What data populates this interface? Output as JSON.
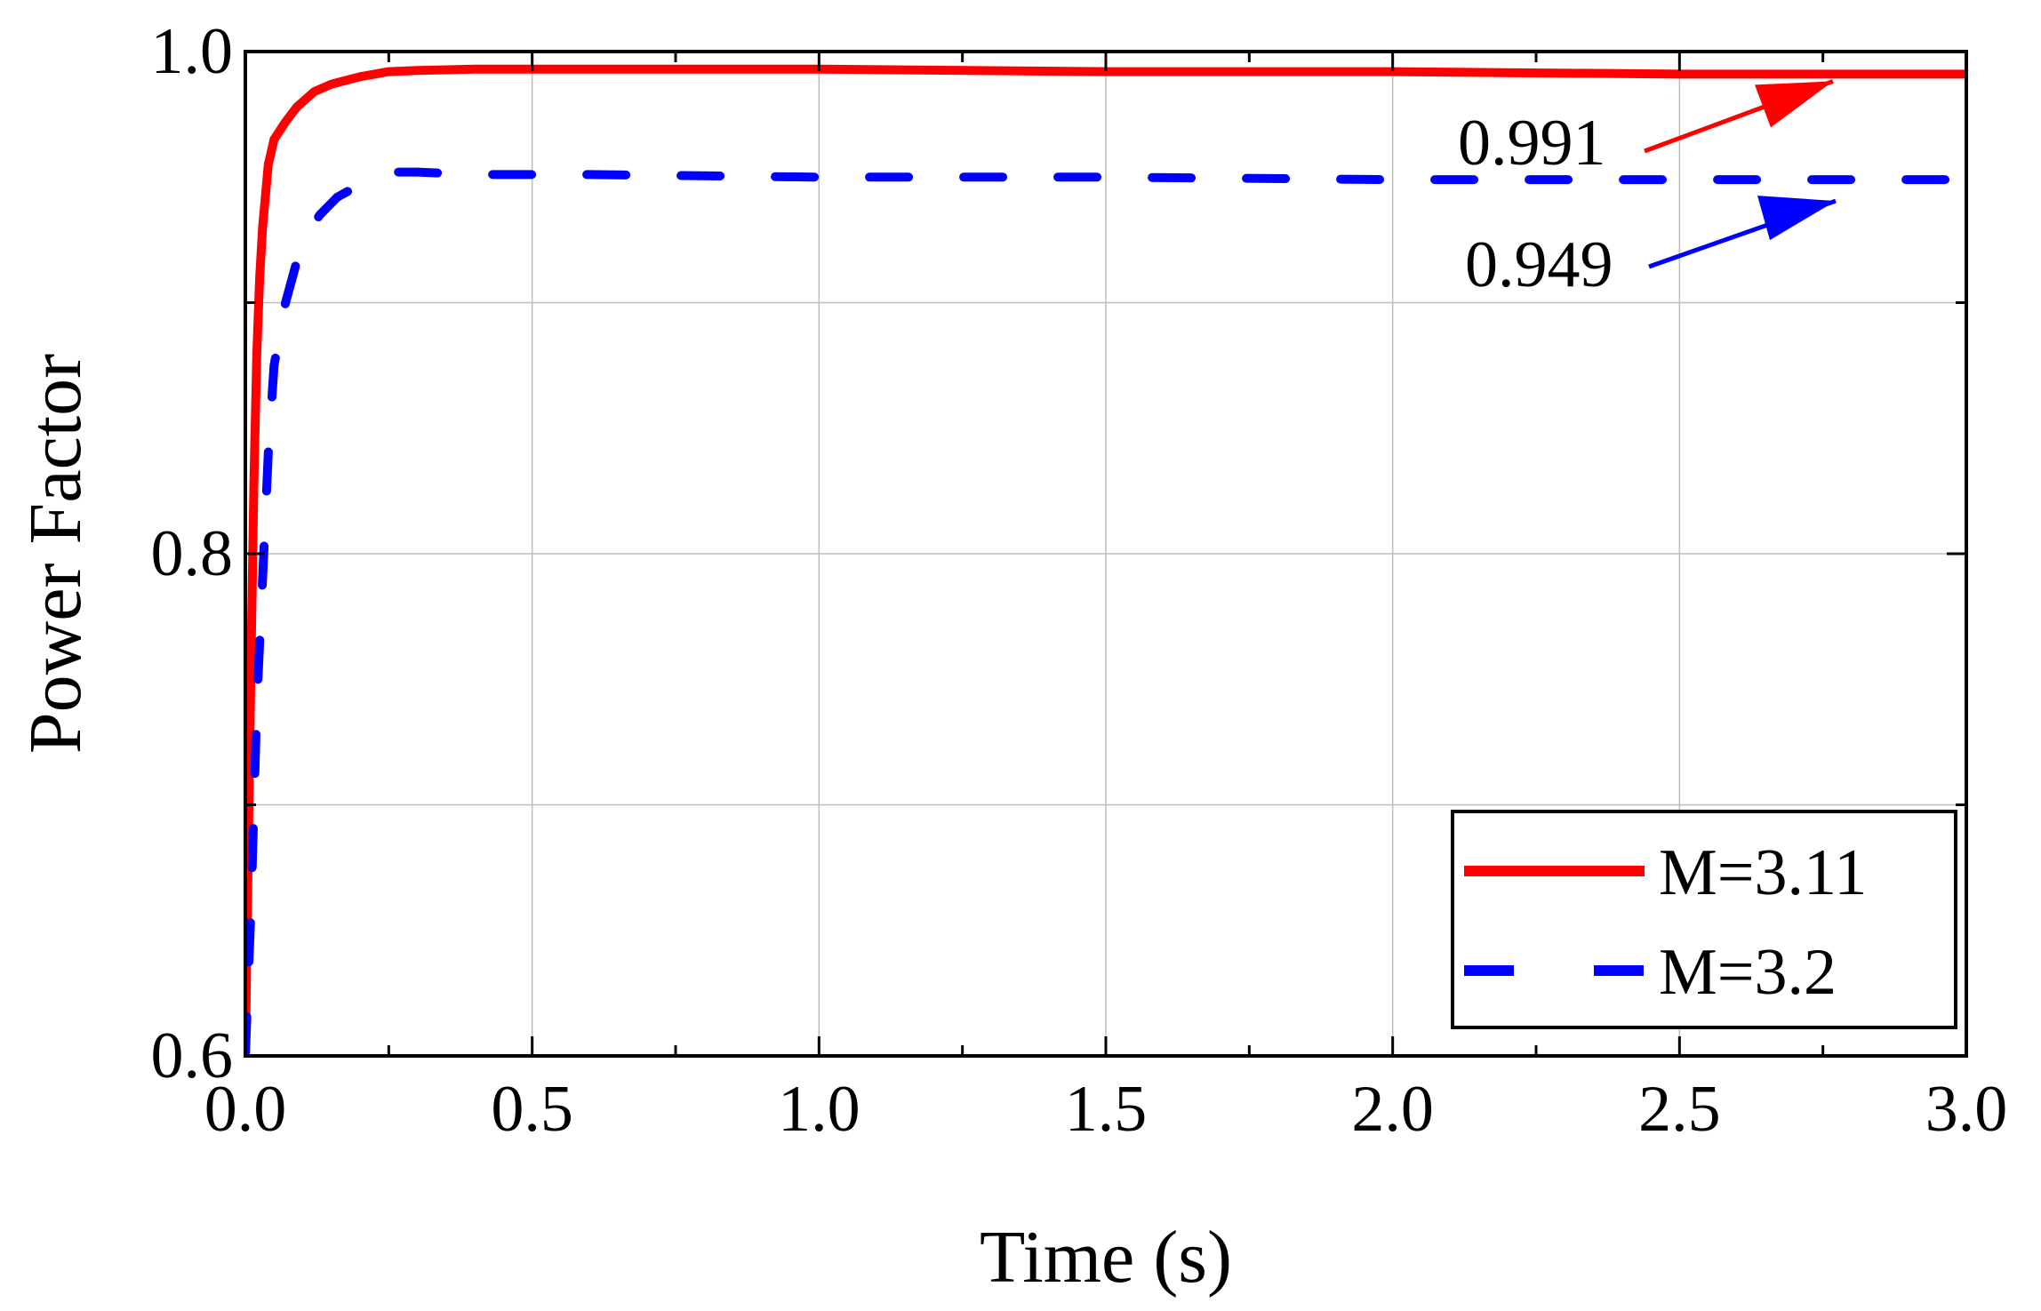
{
  "chart_data": {
    "type": "line",
    "title": "",
    "xlabel": "Time (s)",
    "ylabel": "Power Factor",
    "xlim": [
      0.0,
      3.0
    ],
    "ylim": [
      0.6,
      1.0
    ],
    "x_major_ticks": [
      0.0,
      0.5,
      1.0,
      1.5,
      2.0,
      2.5,
      3.0
    ],
    "x_tick_labels": [
      "0.0",
      "0.5",
      "1.0",
      "1.5",
      "2.0",
      "2.5",
      "3.0"
    ],
    "x_minor_ticks": [
      0.25,
      0.75,
      1.25,
      1.75,
      2.25,
      2.75
    ],
    "y_major_ticks": [
      0.6,
      0.8,
      1.0
    ],
    "y_tick_labels": [
      "0.6",
      "0.8",
      "1.0"
    ],
    "y_minor_ticks": [
      0.7,
      0.9
    ],
    "grid": true,
    "legend_position": "bottom-right",
    "series": [
      {
        "name": "M=3.11",
        "color": "#ff0000",
        "style": "solid",
        "x": [
          0.0,
          0.005,
          0.01,
          0.015,
          0.02,
          0.025,
          0.03,
          0.04,
          0.05,
          0.07,
          0.09,
          0.12,
          0.15,
          0.2,
          0.25,
          0.3,
          0.4,
          0.6,
          1.0,
          1.5,
          2.0,
          2.5,
          3.0
        ],
        "y": [
          0.6,
          0.68,
          0.76,
          0.83,
          0.88,
          0.91,
          0.93,
          0.955,
          0.965,
          0.972,
          0.978,
          0.984,
          0.987,
          0.99,
          0.992,
          0.9925,
          0.993,
          0.993,
          0.993,
          0.992,
          0.992,
          0.991,
          0.991
        ]
      },
      {
        "name": "M=3.2",
        "color": "#0000ff",
        "style": "dashed",
        "x": [
          0.0,
          0.01,
          0.02,
          0.03,
          0.04,
          0.05,
          0.07,
          0.1,
          0.13,
          0.16,
          0.2,
          0.25,
          0.3,
          0.4,
          0.6,
          1.0,
          1.5,
          2.0,
          2.5,
          3.0
        ],
        "y": [
          0.6,
          0.66,
          0.74,
          0.79,
          0.84,
          0.875,
          0.9,
          0.925,
          0.935,
          0.942,
          0.947,
          0.952,
          0.952,
          0.951,
          0.951,
          0.95,
          0.95,
          0.949,
          0.949,
          0.949
        ]
      }
    ],
    "annotations": [
      {
        "text": "0.991",
        "color": "#ff0000",
        "target_x": 2.75,
        "target_y": 0.991
      },
      {
        "text": "0.949",
        "color": "#0000ff",
        "target_x": 2.75,
        "target_y": 0.949
      }
    ]
  }
}
